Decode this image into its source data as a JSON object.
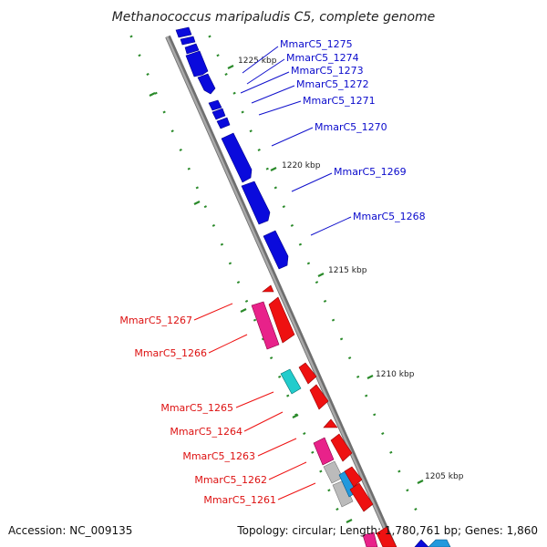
{
  "title": "Methanococcus maripaludis C5, complete genome",
  "footer": {
    "accession": "Accession: NC_009135",
    "topology": "Topology: circular; Length: 1,780,761 bp; Genes: 1,860"
  },
  "colors": {
    "forward_gene": "#0a0adc",
    "reverse_gene": "#ee1111",
    "backbone": "#8a8a8a",
    "tick": "#2a8a2a",
    "pink": "#e8228a",
    "cyan": "#22cccc",
    "gray_gene": "#bbbbbb",
    "light_blue": "#2299dd"
  },
  "kbp_markers": [
    {
      "label": "1225 kbp"
    },
    {
      "label": "1220 kbp"
    },
    {
      "label": "1215 kbp"
    },
    {
      "label": "1210 kbp"
    },
    {
      "label": "1205 kbp"
    }
  ],
  "forward_genes": [
    {
      "label": "MmarC5_1275"
    },
    {
      "label": "MmarC5_1274"
    },
    {
      "label": "MmarC5_1273"
    },
    {
      "label": "MmarC5_1272"
    },
    {
      "label": "MmarC5_1271"
    },
    {
      "label": "MmarC5_1270"
    },
    {
      "label": "MmarC5_1269"
    },
    {
      "label": "MmarC5_1268"
    }
  ],
  "reverse_genes": [
    {
      "label": "MmarC5_1267"
    },
    {
      "label": "MmarC5_1266"
    },
    {
      "label": "MmarC5_1265"
    },
    {
      "label": "MmarC5_1264"
    },
    {
      "label": "MmarC5_1263"
    },
    {
      "label": "MmarC5_1262"
    },
    {
      "label": "MmarC5_1261"
    }
  ]
}
